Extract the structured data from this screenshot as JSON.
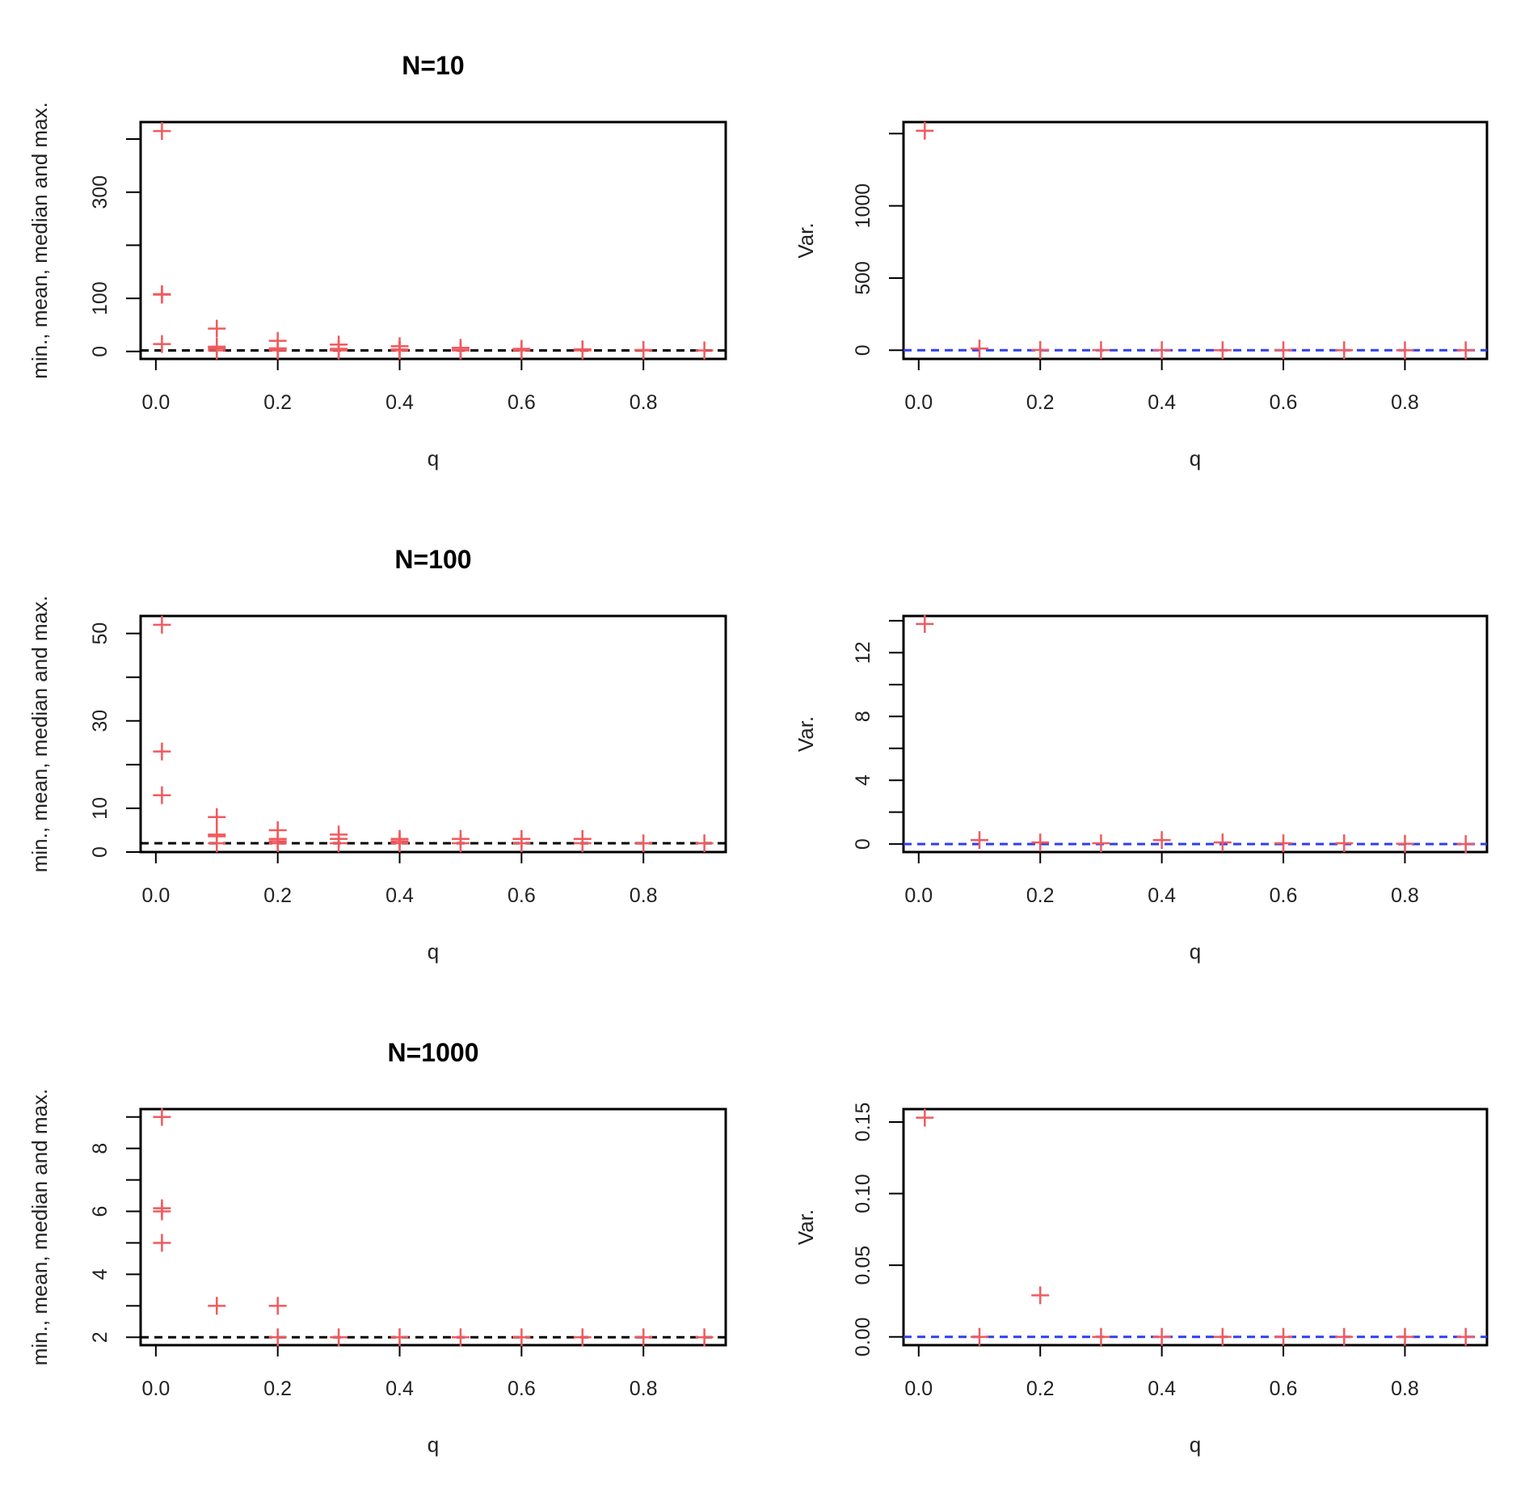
{
  "colors": {
    "points": "#f05a5f",
    "reference_stats": "#000000",
    "reference_var": "#2f3ff0"
  },
  "chart_data": [
    {
      "type": "scatter",
      "title": "N=10",
      "xlabel": "q",
      "ylabel": "min., mean, median and max.",
      "xlim": [
        -0.025,
        0.935
      ],
      "ylim": [
        -14,
        432
      ],
      "xticks": [
        0,
        0.2,
        0.4,
        0.6,
        0.8
      ],
      "xtick_labels": [
        "0.0",
        "0.2",
        "0.4",
        "0.6",
        "0.8"
      ],
      "yticks": [
        0,
        100,
        200,
        300,
        400
      ],
      "ytick_labels": [
        "0",
        "100",
        "",
        "300",
        ""
      ],
      "reference_line": 2,
      "points": [
        {
          "x": 0.01,
          "y": 415
        },
        {
          "x": 0.01,
          "y": 108
        },
        {
          "x": 0.01,
          "y": 107
        },
        {
          "x": 0.01,
          "y": 14
        },
        {
          "x": 0.1,
          "y": 43
        },
        {
          "x": 0.1,
          "y": 9
        },
        {
          "x": 0.1,
          "y": 6
        },
        {
          "x": 0.1,
          "y": 2
        },
        {
          "x": 0.2,
          "y": 20
        },
        {
          "x": 0.2,
          "y": 6
        },
        {
          "x": 0.2,
          "y": 4
        },
        {
          "x": 0.2,
          "y": 2
        },
        {
          "x": 0.3,
          "y": 13
        },
        {
          "x": 0.3,
          "y": 5
        },
        {
          "x": 0.3,
          "y": 4
        },
        {
          "x": 0.3,
          "y": 2
        },
        {
          "x": 0.4,
          "y": 10
        },
        {
          "x": 0.4,
          "y": 4
        },
        {
          "x": 0.4,
          "y": 3
        },
        {
          "x": 0.4,
          "y": 2
        },
        {
          "x": 0.5,
          "y": 7
        },
        {
          "x": 0.5,
          "y": 3
        },
        {
          "x": 0.5,
          "y": 2
        },
        {
          "x": 0.6,
          "y": 5
        },
        {
          "x": 0.6,
          "y": 2
        },
        {
          "x": 0.7,
          "y": 4
        },
        {
          "x": 0.7,
          "y": 2
        },
        {
          "x": 0.8,
          "y": 3
        },
        {
          "x": 0.8,
          "y": 2
        },
        {
          "x": 0.9,
          "y": 2
        }
      ]
    },
    {
      "type": "scatter",
      "title": "",
      "xlabel": "q",
      "ylabel": "Var.",
      "xlim": [
        -0.025,
        0.935
      ],
      "ylim": [
        -60,
        1580
      ],
      "xticks": [
        0,
        0.2,
        0.4,
        0.6,
        0.8
      ],
      "xtick_labels": [
        "0.0",
        "0.2",
        "0.4",
        "0.6",
        "0.8"
      ],
      "yticks": [
        0,
        500,
        1000,
        1500
      ],
      "ytick_labels": [
        "0",
        "500",
        "1000",
        ""
      ],
      "reference_line": 0,
      "points": [
        {
          "x": 0.01,
          "y": 1520
        },
        {
          "x": 0.1,
          "y": 12
        },
        {
          "x": 0.2,
          "y": 2
        },
        {
          "x": 0.3,
          "y": 1
        },
        {
          "x": 0.4,
          "y": 1
        },
        {
          "x": 0.5,
          "y": 0.5
        },
        {
          "x": 0.6,
          "y": 0.3
        },
        {
          "x": 0.7,
          "y": 0.2
        },
        {
          "x": 0.8,
          "y": 0.1
        },
        {
          "x": 0.9,
          "y": 0
        }
      ]
    },
    {
      "type": "scatter",
      "title": "N=100",
      "xlabel": "q",
      "ylabel": "min., mean, median and max.",
      "xlim": [
        -0.025,
        0.935
      ],
      "ylim": [
        0,
        54
      ],
      "xticks": [
        0,
        0.2,
        0.4,
        0.6,
        0.8
      ],
      "xtick_labels": [
        "0.0",
        "0.2",
        "0.4",
        "0.6",
        "0.8"
      ],
      "yticks": [
        0,
        10,
        20,
        30,
        40,
        50
      ],
      "ytick_labels": [
        "0",
        "10",
        "",
        "30",
        "",
        "50"
      ],
      "reference_line": 2,
      "points": [
        {
          "x": 0.01,
          "y": 52
        },
        {
          "x": 0.01,
          "y": 23
        },
        {
          "x": 0.01,
          "y": 13
        },
        {
          "x": 0.1,
          "y": 8
        },
        {
          "x": 0.1,
          "y": 4
        },
        {
          "x": 0.1,
          "y": 3.6
        },
        {
          "x": 0.1,
          "y": 2
        },
        {
          "x": 0.2,
          "y": 5
        },
        {
          "x": 0.2,
          "y": 3
        },
        {
          "x": 0.2,
          "y": 2.5
        },
        {
          "x": 0.2,
          "y": 2
        },
        {
          "x": 0.3,
          "y": 4
        },
        {
          "x": 0.3,
          "y": 3
        },
        {
          "x": 0.3,
          "y": 2
        },
        {
          "x": 0.4,
          "y": 3
        },
        {
          "x": 0.4,
          "y": 2.5
        },
        {
          "x": 0.4,
          "y": 2
        },
        {
          "x": 0.5,
          "y": 3
        },
        {
          "x": 0.5,
          "y": 2
        },
        {
          "x": 0.6,
          "y": 3
        },
        {
          "x": 0.6,
          "y": 2
        },
        {
          "x": 0.7,
          "y": 3
        },
        {
          "x": 0.7,
          "y": 2
        },
        {
          "x": 0.8,
          "y": 2
        },
        {
          "x": 0.9,
          "y": 2
        }
      ]
    },
    {
      "type": "scatter",
      "title": "",
      "xlabel": "q",
      "ylabel": "Var.",
      "xlim": [
        -0.025,
        0.935
      ],
      "ylim": [
        -0.5,
        14.3
      ],
      "xticks": [
        0,
        0.2,
        0.4,
        0.6,
        0.8
      ],
      "xtick_labels": [
        "0.0",
        "0.2",
        "0.4",
        "0.6",
        "0.8"
      ],
      "yticks": [
        0,
        2,
        4,
        6,
        8,
        10,
        12,
        14
      ],
      "ytick_labels": [
        "0",
        "",
        "4",
        "",
        "8",
        "",
        "12",
        ""
      ],
      "reference_line": 0,
      "points": [
        {
          "x": 0.01,
          "y": 13.8
        },
        {
          "x": 0.1,
          "y": 0.25
        },
        {
          "x": 0.2,
          "y": 0.1
        },
        {
          "x": 0.3,
          "y": 0.05
        },
        {
          "x": 0.4,
          "y": 0.25
        },
        {
          "x": 0.5,
          "y": 0.1
        },
        {
          "x": 0.6,
          "y": 0.05
        },
        {
          "x": 0.7,
          "y": 0.05
        },
        {
          "x": 0.8,
          "y": 0.02
        },
        {
          "x": 0.9,
          "y": 0
        }
      ]
    },
    {
      "type": "scatter",
      "title": "N=1000",
      "xlabel": "q",
      "ylabel": "min., mean, median and max.",
      "xlim": [
        -0.025,
        0.935
      ],
      "ylim": [
        1.75,
        9.25
      ],
      "xticks": [
        0,
        0.2,
        0.4,
        0.6,
        0.8
      ],
      "xtick_labels": [
        "0.0",
        "0.2",
        "0.4",
        "0.6",
        "0.8"
      ],
      "yticks": [
        2,
        3,
        4,
        5,
        6,
        7,
        8,
        9
      ],
      "ytick_labels": [
        "2",
        "",
        "4",
        "",
        "6",
        "",
        "8",
        ""
      ],
      "reference_line": 2,
      "points": [
        {
          "x": 0.01,
          "y": 9
        },
        {
          "x": 0.01,
          "y": 6.1
        },
        {
          "x": 0.01,
          "y": 6
        },
        {
          "x": 0.01,
          "y": 5
        },
        {
          "x": 0.1,
          "y": 3
        },
        {
          "x": 0.2,
          "y": 3
        },
        {
          "x": 0.2,
          "y": 2
        },
        {
          "x": 0.3,
          "y": 2
        },
        {
          "x": 0.4,
          "y": 2
        },
        {
          "x": 0.5,
          "y": 2
        },
        {
          "x": 0.6,
          "y": 2
        },
        {
          "x": 0.7,
          "y": 2
        },
        {
          "x": 0.8,
          "y": 2
        },
        {
          "x": 0.9,
          "y": 2
        }
      ]
    },
    {
      "type": "scatter",
      "title": "",
      "xlabel": "q",
      "ylabel": "Var.",
      "xlim": [
        -0.025,
        0.935
      ],
      "ylim": [
        -0.0058,
        0.159
      ],
      "xticks": [
        0,
        0.2,
        0.4,
        0.6,
        0.8
      ],
      "xtick_labels": [
        "0.0",
        "0.2",
        "0.4",
        "0.6",
        "0.8"
      ],
      "yticks": [
        0,
        0.05,
        0.1,
        0.15
      ],
      "ytick_labels": [
        "0.00",
        "0.05",
        "0.10",
        "0.15"
      ],
      "reference_line": 0,
      "points": [
        {
          "x": 0.01,
          "y": 0.153
        },
        {
          "x": 0.1,
          "y": 0
        },
        {
          "x": 0.2,
          "y": 0.029
        },
        {
          "x": 0.3,
          "y": 0
        },
        {
          "x": 0.4,
          "y": 0
        },
        {
          "x": 0.5,
          "y": 0
        },
        {
          "x": 0.6,
          "y": 0
        },
        {
          "x": 0.7,
          "y": 0
        },
        {
          "x": 0.8,
          "y": 0
        },
        {
          "x": 0.9,
          "y": 0
        }
      ]
    }
  ]
}
